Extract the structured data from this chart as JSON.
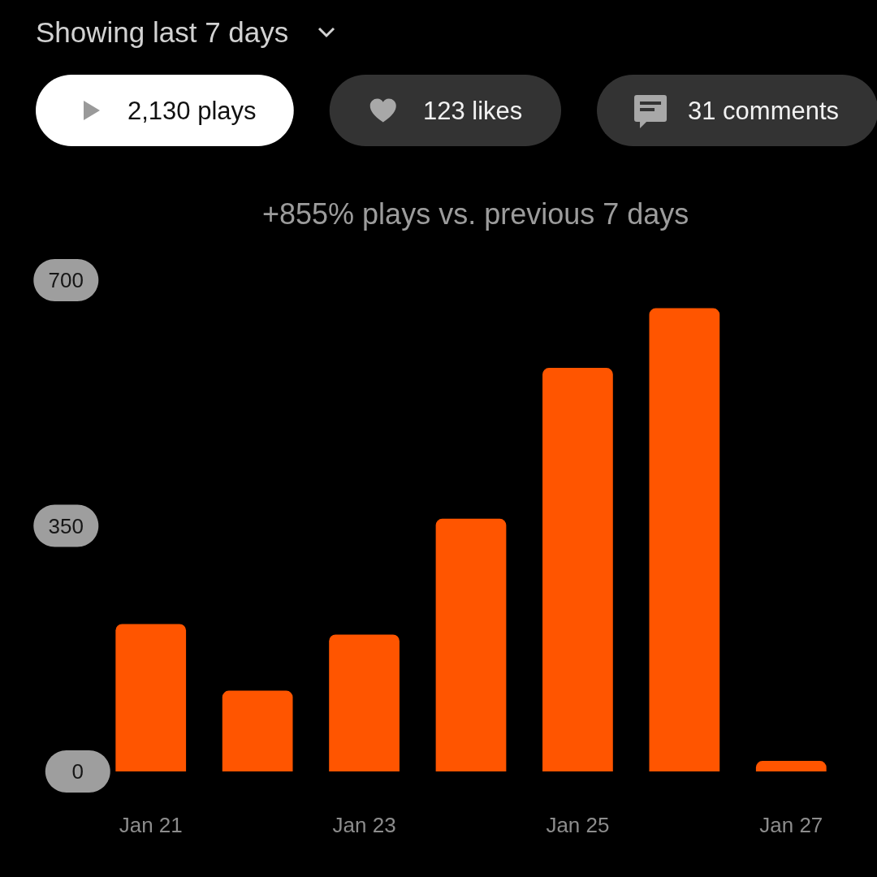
{
  "chart_data": {
    "type": "bar",
    "title": "Showing last 7 days",
    "subtitle": "+855% plays vs. previous 7 days",
    "annotations": [
      "2,130 plays",
      "123 likes",
      "31 comments"
    ],
    "categories": [
      "Jan 21",
      null,
      "Jan 23",
      null,
      "Jan 25",
      null,
      "Jan 27"
    ],
    "values": [
      210,
      115,
      195,
      360,
      575,
      660,
      15
    ],
    "color": "#ff5500",
    "ylim": [
      0,
      700
    ],
    "yticks": [
      0,
      350,
      700
    ],
    "grid": false,
    "legend": false
  }
}
